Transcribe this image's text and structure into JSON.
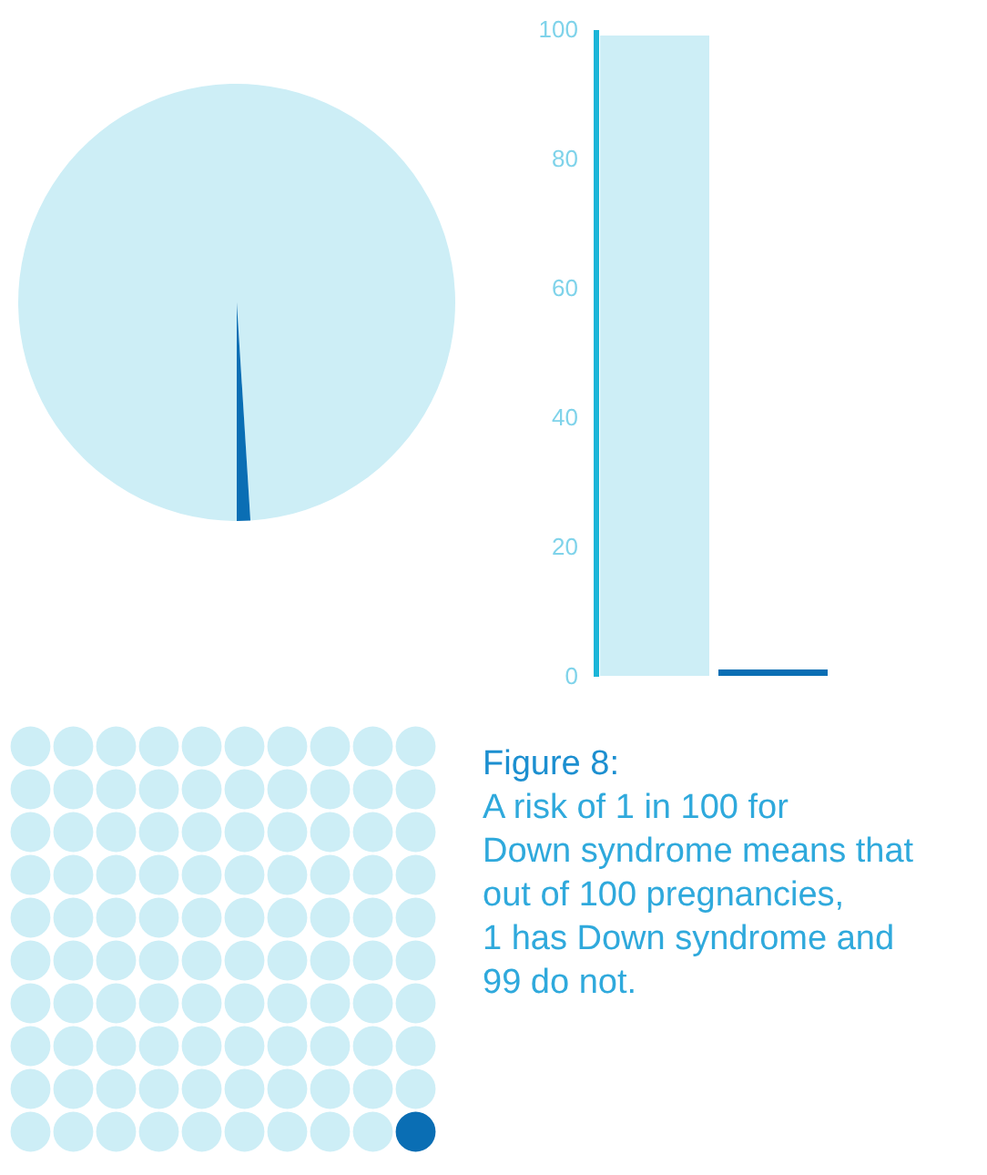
{
  "chart_data": [
    {
      "type": "pie",
      "categories": [
        null,
        null
      ],
      "values": [
        99,
        1
      ],
      "colors": [
        "#cdeef6",
        "#0a6eb4"
      ]
    },
    {
      "type": "bar",
      "categories": [
        null,
        null
      ],
      "values": [
        99,
        1
      ],
      "colors": [
        "#cdeef6",
        "#0a6eb4"
      ],
      "ylim": [
        0,
        100
      ],
      "yticks": [
        0,
        20,
        40,
        60,
        80,
        100
      ],
      "grid": false
    },
    {
      "type": "other",
      "annotations": [
        "Figure 8:",
        "A risk of 1 in 100 for Down syndrome means that out of 100 pregnancies, 1 has Down syndrome and 99 do not."
      ]
    }
  ]
}
